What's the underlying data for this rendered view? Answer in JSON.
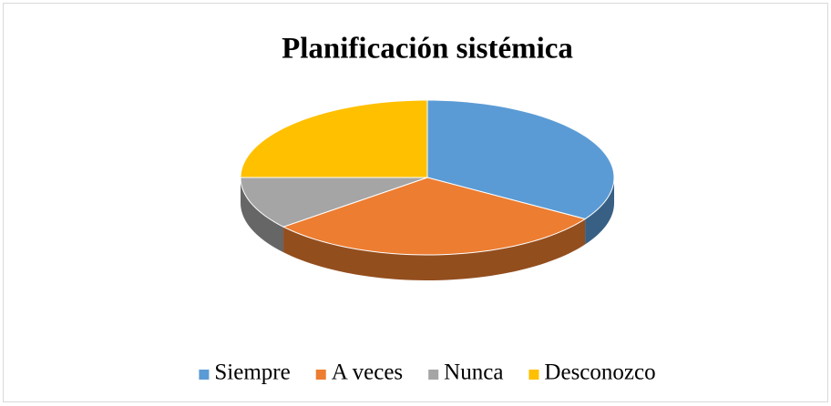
{
  "chart_data": {
    "type": "pie",
    "title": "Planificación sistémica",
    "categories": [
      "Siempre",
      "A veces",
      "Nunca",
      "Desconozco"
    ],
    "values": [
      34,
      30,
      11,
      25
    ],
    "colors": [
      "#5b9bd5",
      "#ed7d31",
      "#a5a5a5",
      "#ffc000"
    ],
    "legend": "bottom"
  }
}
